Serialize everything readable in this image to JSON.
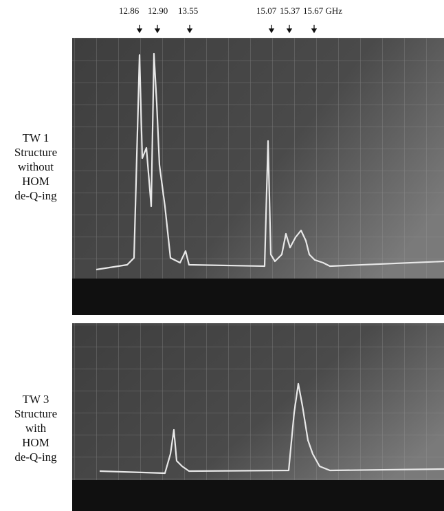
{
  "frequency_labels": [
    "12.86",
    "12.90",
    "13.55",
    "15.07",
    "15.37",
    "15.67 GHz"
  ],
  "panels": [
    {
      "label_lines": [
        "TW 1",
        "Structure",
        "without",
        "HOM",
        "de-Q-ing"
      ]
    },
    {
      "label_lines": [
        "TW 3",
        "Structure",
        "with",
        "HOM",
        "de-Q-ing"
      ]
    }
  ]
}
